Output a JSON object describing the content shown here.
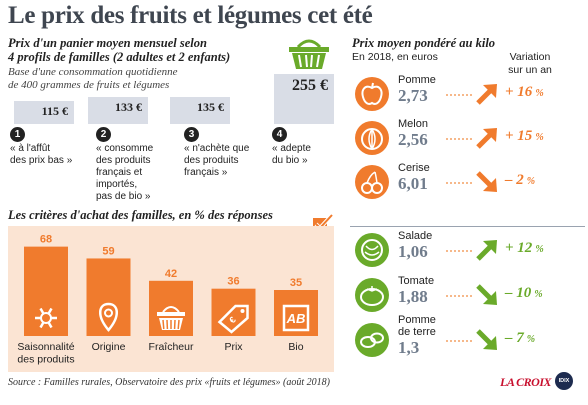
{
  "title": "Le prix des fruits et légumes cet été",
  "basket": {
    "title_line1": "Prix d'un panier moyen mensuel selon",
    "title_line2": "4 profils de familles (2 adultes et 2 enfants)",
    "sub_line1": "Base d'une consommation quotidienne",
    "sub_line2": "de 400 grammes de fruits et légumes",
    "profiles": [
      {
        "num": "1",
        "price": "115 €",
        "value": 115,
        "lines": [
          "« à l'affût",
          "des prix bas »"
        ]
      },
      {
        "num": "2",
        "price": "133 €",
        "value": 133,
        "lines": [
          "« consomme",
          "des produits",
          "français et",
          "importés,",
          "pas de bio »"
        ]
      },
      {
        "num": "3",
        "price": "135 €",
        "value": 135,
        "lines": [
          "« n'achète que",
          "des produits",
          "français »"
        ]
      },
      {
        "num": "4",
        "price": "255 €",
        "value": 255,
        "lines": [
          "« adepte",
          "du bio »"
        ]
      }
    ]
  },
  "chart_data": {
    "type": "bar",
    "title": "Les critères d'achat des familles, en % des réponses",
    "categories": [
      "Saisonnalité des produits",
      "Origine",
      "Fraîcheur",
      "Prix",
      "Bio"
    ],
    "category_lines": [
      [
        "Saisonnalité",
        "des produits"
      ],
      [
        "Origine"
      ],
      [
        "Fraîcheur"
      ],
      [
        "Prix"
      ],
      [
        "Bio"
      ]
    ],
    "values": [
      68,
      59,
      42,
      36,
      35
    ],
    "value_labels": [
      "68",
      "59",
      "42",
      "36",
      "35"
    ],
    "icons": [
      "sun-snow-icon",
      "location-pin-icon",
      "basket-icon",
      "price-tag-icon",
      "ab-label-icon"
    ],
    "ylim": [
      0,
      70
    ],
    "grid": false
  },
  "prices": {
    "title": "Prix moyen pondéré au kilo",
    "subtitle": "En 2018, en euros",
    "variation_header_1": "Variation",
    "variation_header_2": "sur un an",
    "fruits": [
      {
        "name": "Pomme",
        "price": "2,73",
        "variation": "+ 16",
        "pct": "%",
        "dir": "up",
        "icon": "apple-icon"
      },
      {
        "name": "Melon",
        "price": "2,56",
        "variation": "+ 15",
        "pct": "%",
        "dir": "up",
        "icon": "melon-icon"
      },
      {
        "name": "Cerise",
        "price": "6,01",
        "variation": "– 2",
        "pct": "%",
        "dir": "down",
        "icon": "cherry-icon"
      }
    ],
    "vegetables": [
      {
        "name_lines": [
          "Salade"
        ],
        "price": "1,06",
        "variation": "+ 12",
        "pct": "%",
        "dir": "up",
        "icon": "lettuce-icon"
      },
      {
        "name_lines": [
          "Tomate"
        ],
        "price": "1,88",
        "variation": "– 10",
        "pct": "%",
        "dir": "down",
        "icon": "tomato-icon"
      },
      {
        "name_lines": [
          "Pomme",
          "de terre"
        ],
        "price": "1,3",
        "variation": "– 7",
        "pct": "%",
        "dir": "down",
        "icon": "potato-icon"
      }
    ]
  },
  "source": "Source : Familles rurales, Observatoire des prix «fruits et légumes» (août 2018)",
  "logo": "LA CROIX",
  "logo_badge": "IDIX",
  "colors": {
    "orange": "#f07b2d",
    "green": "#6aaa2a",
    "box": "#d9dde6",
    "grey_text": "#707c8c"
  }
}
